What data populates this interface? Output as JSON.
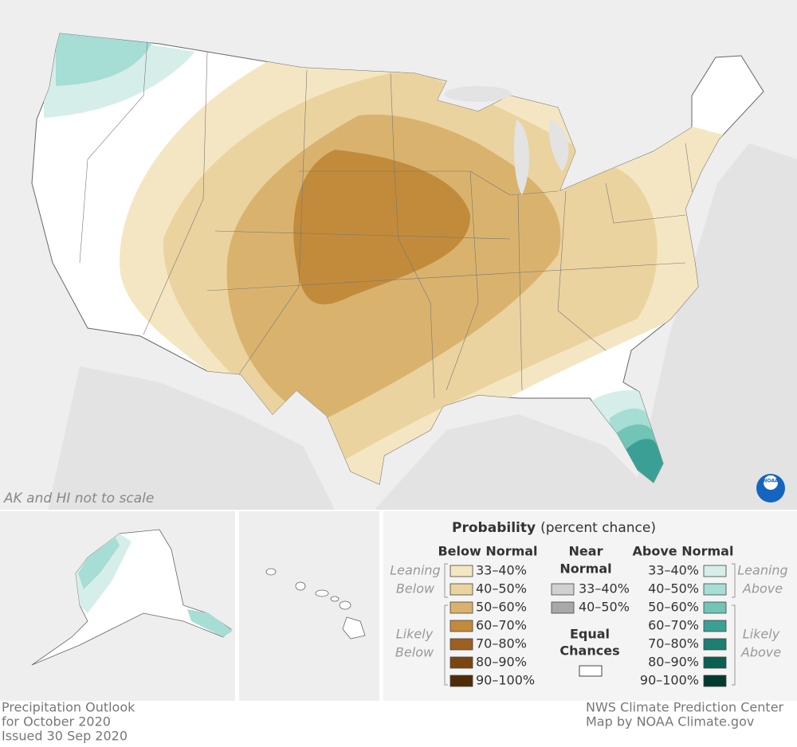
{
  "map": {
    "note": "AK and HI not to scale",
    "logo": "NOAA"
  },
  "legend": {
    "title": "Probability",
    "subtitle": "(percent chance)",
    "below": {
      "heading": "Below Normal",
      "leaning": [
        "Leaning",
        "Below"
      ],
      "likely": [
        "Likely",
        "Below"
      ],
      "items": [
        {
          "label": "33–40%",
          "color": "#f5e6c3"
        },
        {
          "label": "40–50%",
          "color": "#ebd3a0"
        },
        {
          "label": "50–60%",
          "color": "#d9b36e"
        },
        {
          "label": "60–70%",
          "color": "#c28b3b"
        },
        {
          "label": "70–80%",
          "color": "#9c6020"
        },
        {
          "label": "80–90%",
          "color": "#7a4511"
        },
        {
          "label": "90–100%",
          "color": "#4f2b06"
        }
      ]
    },
    "near": {
      "heading": [
        "Near",
        "Normal"
      ],
      "items": [
        {
          "label": "33–40%",
          "color": "#d0d0d0"
        },
        {
          "label": "40–50%",
          "color": "#a8a8a8"
        }
      ]
    },
    "equal": {
      "heading": [
        "Equal",
        "Chances"
      ],
      "color": "#ffffff"
    },
    "above": {
      "heading": "Above Normal",
      "leaning": [
        "Leaning",
        "Above"
      ],
      "likely": [
        "Likely",
        "Above"
      ],
      "items": [
        {
          "label": "33–40%",
          "color": "#d6eee9"
        },
        {
          "label": "40–50%",
          "color": "#a6ddd4"
        },
        {
          "label": "50–60%",
          "color": "#71c4b6"
        },
        {
          "label": "60–70%",
          "color": "#3aa095"
        },
        {
          "label": "70–80%",
          "color": "#1c7f72"
        },
        {
          "label": "80–90%",
          "color": "#0b5f51"
        },
        {
          "label": "90–100%",
          "color": "#033b30"
        }
      ]
    }
  },
  "footer": {
    "left": [
      "Precipitation Outlook",
      "for October 2020",
      "Issued 30 Sep 2020"
    ],
    "right": [
      "NWS Climate Prediction Center",
      "Map by NOAA Climate.gov"
    ]
  }
}
